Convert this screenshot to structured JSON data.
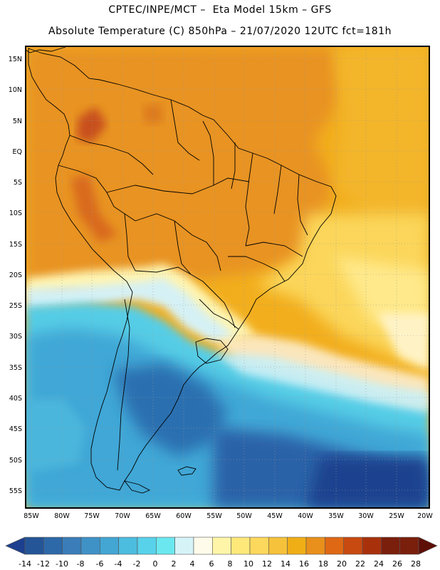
{
  "header": {
    "line1": "CPTEC/INPE/MCT –  Eta Model 15km – GFS",
    "line2": "Absolute Temperature (C) 850hPa – 21/07/2020 12UTC fct=181h"
  },
  "axes": {
    "lat_labels": [
      "15N",
      "10N",
      "5N",
      "EQ",
      "5S",
      "10S",
      "15S",
      "20S",
      "25S",
      "30S",
      "35S",
      "40S",
      "45S",
      "50S",
      "55S"
    ],
    "lon_labels": [
      "85W",
      "80W",
      "75W",
      "70W",
      "65W",
      "60W",
      "55W",
      "50W",
      "45W",
      "40W",
      "35W",
      "30W",
      "25W",
      "20W"
    ]
  },
  "colorbar": {
    "labels": [
      "-14",
      "-12",
      "-10",
      "-8",
      "-6",
      "-4",
      "-2",
      "0",
      "2",
      "4",
      "6",
      "8",
      "10",
      "12",
      "14",
      "16",
      "18",
      "20",
      "22",
      "24",
      "26",
      "28"
    ],
    "colors": [
      "#1d3f8f",
      "#245596",
      "#2d68a8",
      "#3a7db8",
      "#3f92c6",
      "#43a6d3",
      "#4cbcdf",
      "#58d2ea",
      "#6be8ef",
      "#d6f4f8",
      "#fffbea",
      "#fff5a8",
      "#ffe87a",
      "#fcd85c",
      "#f6c23b",
      "#f0ae16",
      "#e9901c",
      "#df6814",
      "#c84a10",
      "#a8310c",
      "#7a1f0c",
      "#5e0f08"
    ]
  }
}
